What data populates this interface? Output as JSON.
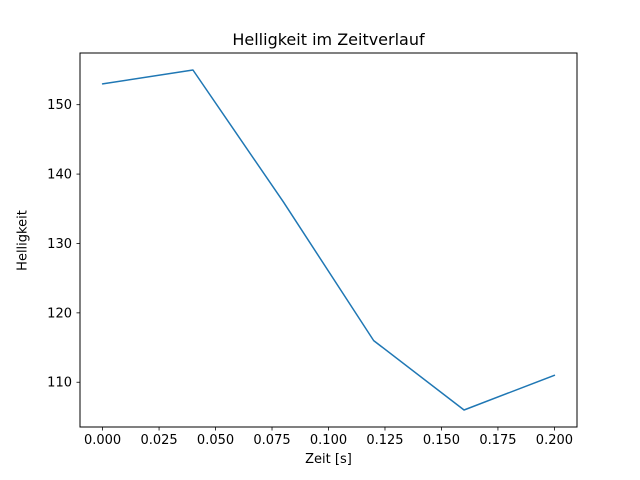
{
  "chart_data": {
    "type": "line",
    "title": "Helligkeit im Zeitverlauf",
    "xlabel": "Zeit [s]",
    "ylabel": "Helligkeit",
    "x": [
      0.0,
      0.04,
      0.08,
      0.12,
      0.16,
      0.2
    ],
    "y": [
      153,
      155,
      136,
      116,
      106,
      111
    ],
    "series": [
      {
        "name": "Helligkeit",
        "x": [
          0.0,
          0.04,
          0.08,
          0.12,
          0.16,
          0.2
        ],
        "values": [
          153,
          155,
          136,
          116,
          106,
          111
        ]
      }
    ],
    "xlim": [
      -0.01,
      0.21
    ],
    "ylim": [
      103.55,
      157.45
    ],
    "xticks": [
      0.0,
      0.025,
      0.05,
      0.075,
      0.1,
      0.125,
      0.15,
      0.175,
      0.2
    ],
    "xtick_labels": [
      "0.000",
      "0.025",
      "0.050",
      "0.075",
      "0.100",
      "0.125",
      "0.150",
      "0.175",
      "0.200"
    ],
    "yticks": [
      110,
      120,
      130,
      140,
      150
    ],
    "ytick_labels": [
      "110",
      "120",
      "130",
      "140",
      "150"
    ],
    "line_color": "#1f77b4",
    "spine_color": "#000000",
    "tick_color": "#000000",
    "background": "#ffffff",
    "grid": false,
    "legend": null
  }
}
